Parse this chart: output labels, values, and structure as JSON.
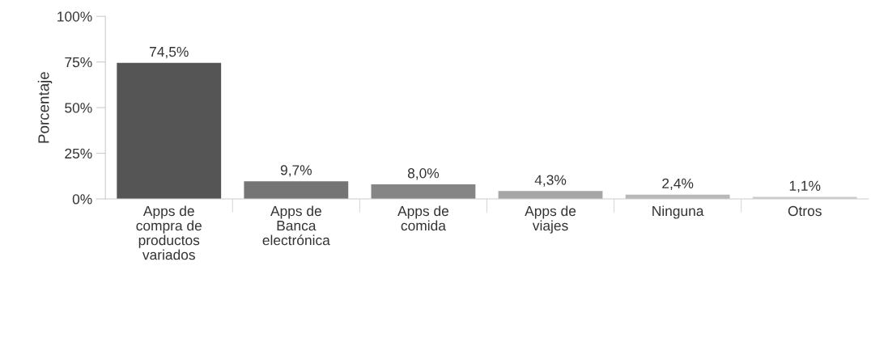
{
  "chart_data": {
    "type": "bar",
    "ylabel": "Porcentaje",
    "categories": [
      "Apps de\ncompra de\nproductos\nvariados",
      "Apps de\nBanca\nelectrónica",
      "Apps de\ncomida",
      "Apps de\nviajes",
      "Ninguna",
      "Otros"
    ],
    "values": [
      74.5,
      9.7,
      8.0,
      4.3,
      2.4,
      1.1
    ],
    "value_labels": [
      "74,5%",
      "9,7%",
      "8,0%",
      "4,3%",
      "2,4%",
      "1,1%"
    ],
    "colors": [
      "#555555",
      "#757575",
      "#858585",
      "#a6a6a6",
      "#b8b8b8",
      "#cccccc"
    ],
    "ylim": [
      0,
      100
    ],
    "yticks": [
      {
        "value": 0,
        "label": "0%"
      },
      {
        "value": 25,
        "label": "25%"
      },
      {
        "value": 50,
        "label": "50%"
      },
      {
        "value": 75,
        "label": "75%"
      },
      {
        "value": 100,
        "label": "100%"
      }
    ],
    "grid": false,
    "legend": false
  }
}
